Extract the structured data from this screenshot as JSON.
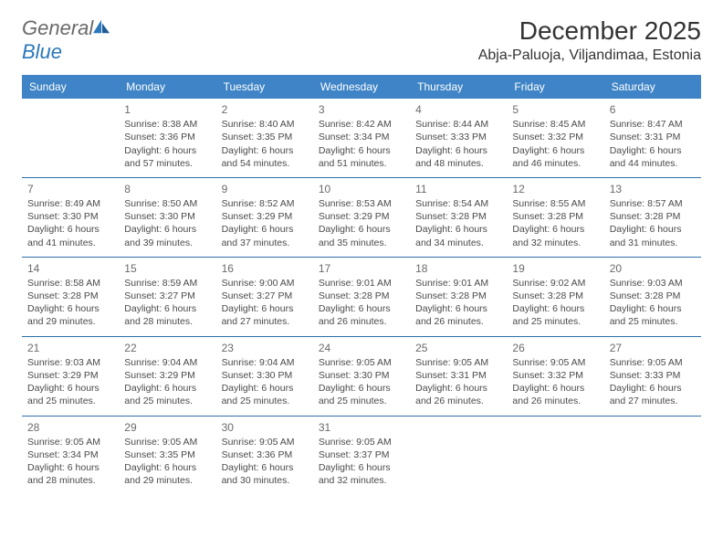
{
  "logo": {
    "general": "General",
    "blue": "Blue"
  },
  "title": "December 2025",
  "location": "Abja-Paluoja, Viljandimaa, Estonia",
  "colors": {
    "header_bg": "#3e84c6",
    "header_text": "#ffffff",
    "rule": "#2f6faa",
    "text": "#4a4a4a",
    "daynum": "#6a6a6a",
    "logo_gray": "#6a6a6a",
    "logo_blue": "#2a77bb"
  },
  "day_names": [
    "Sunday",
    "Monday",
    "Tuesday",
    "Wednesday",
    "Thursday",
    "Friday",
    "Saturday"
  ],
  "weeks": [
    [
      null,
      {
        "n": "1",
        "sr": "8:38 AM",
        "ss": "3:36 PM",
        "dl": "6 hours and 57 minutes."
      },
      {
        "n": "2",
        "sr": "8:40 AM",
        "ss": "3:35 PM",
        "dl": "6 hours and 54 minutes."
      },
      {
        "n": "3",
        "sr": "8:42 AM",
        "ss": "3:34 PM",
        "dl": "6 hours and 51 minutes."
      },
      {
        "n": "4",
        "sr": "8:44 AM",
        "ss": "3:33 PM",
        "dl": "6 hours and 48 minutes."
      },
      {
        "n": "5",
        "sr": "8:45 AM",
        "ss": "3:32 PM",
        "dl": "6 hours and 46 minutes."
      },
      {
        "n": "6",
        "sr": "8:47 AM",
        "ss": "3:31 PM",
        "dl": "6 hours and 44 minutes."
      }
    ],
    [
      {
        "n": "7",
        "sr": "8:49 AM",
        "ss": "3:30 PM",
        "dl": "6 hours and 41 minutes."
      },
      {
        "n": "8",
        "sr": "8:50 AM",
        "ss": "3:30 PM",
        "dl": "6 hours and 39 minutes."
      },
      {
        "n": "9",
        "sr": "8:52 AM",
        "ss": "3:29 PM",
        "dl": "6 hours and 37 minutes."
      },
      {
        "n": "10",
        "sr": "8:53 AM",
        "ss": "3:29 PM",
        "dl": "6 hours and 35 minutes."
      },
      {
        "n": "11",
        "sr": "8:54 AM",
        "ss": "3:28 PM",
        "dl": "6 hours and 34 minutes."
      },
      {
        "n": "12",
        "sr": "8:55 AM",
        "ss": "3:28 PM",
        "dl": "6 hours and 32 minutes."
      },
      {
        "n": "13",
        "sr": "8:57 AM",
        "ss": "3:28 PM",
        "dl": "6 hours and 31 minutes."
      }
    ],
    [
      {
        "n": "14",
        "sr": "8:58 AM",
        "ss": "3:28 PM",
        "dl": "6 hours and 29 minutes."
      },
      {
        "n": "15",
        "sr": "8:59 AM",
        "ss": "3:27 PM",
        "dl": "6 hours and 28 minutes."
      },
      {
        "n": "16",
        "sr": "9:00 AM",
        "ss": "3:27 PM",
        "dl": "6 hours and 27 minutes."
      },
      {
        "n": "17",
        "sr": "9:01 AM",
        "ss": "3:28 PM",
        "dl": "6 hours and 26 minutes."
      },
      {
        "n": "18",
        "sr": "9:01 AM",
        "ss": "3:28 PM",
        "dl": "6 hours and 26 minutes."
      },
      {
        "n": "19",
        "sr": "9:02 AM",
        "ss": "3:28 PM",
        "dl": "6 hours and 25 minutes."
      },
      {
        "n": "20",
        "sr": "9:03 AM",
        "ss": "3:28 PM",
        "dl": "6 hours and 25 minutes."
      }
    ],
    [
      {
        "n": "21",
        "sr": "9:03 AM",
        "ss": "3:29 PM",
        "dl": "6 hours and 25 minutes."
      },
      {
        "n": "22",
        "sr": "9:04 AM",
        "ss": "3:29 PM",
        "dl": "6 hours and 25 minutes."
      },
      {
        "n": "23",
        "sr": "9:04 AM",
        "ss": "3:30 PM",
        "dl": "6 hours and 25 minutes."
      },
      {
        "n": "24",
        "sr": "9:05 AM",
        "ss": "3:30 PM",
        "dl": "6 hours and 25 minutes."
      },
      {
        "n": "25",
        "sr": "9:05 AM",
        "ss": "3:31 PM",
        "dl": "6 hours and 26 minutes."
      },
      {
        "n": "26",
        "sr": "9:05 AM",
        "ss": "3:32 PM",
        "dl": "6 hours and 26 minutes."
      },
      {
        "n": "27",
        "sr": "9:05 AM",
        "ss": "3:33 PM",
        "dl": "6 hours and 27 minutes."
      }
    ],
    [
      {
        "n": "28",
        "sr": "9:05 AM",
        "ss": "3:34 PM",
        "dl": "6 hours and 28 minutes."
      },
      {
        "n": "29",
        "sr": "9:05 AM",
        "ss": "3:35 PM",
        "dl": "6 hours and 29 minutes."
      },
      {
        "n": "30",
        "sr": "9:05 AM",
        "ss": "3:36 PM",
        "dl": "6 hours and 30 minutes."
      },
      {
        "n": "31",
        "sr": "9:05 AM",
        "ss": "3:37 PM",
        "dl": "6 hours and 32 minutes."
      },
      null,
      null,
      null
    ]
  ],
  "labels": {
    "sunrise": "Sunrise: ",
    "sunset": "Sunset: ",
    "daylight": "Daylight: "
  }
}
